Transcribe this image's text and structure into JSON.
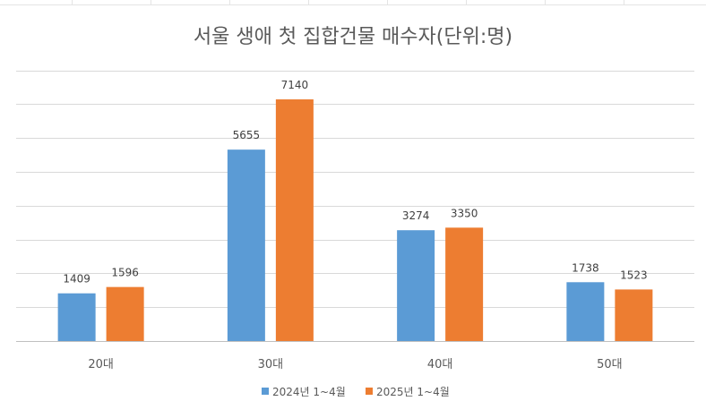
{
  "chart_data": {
    "type": "bar",
    "title": "서울 생애 첫 집합건물 매수자(단위:명)",
    "categories": [
      "20대",
      "30대",
      "40대",
      "50대"
    ],
    "series": [
      {
        "name": "2024년 1~4월",
        "color": "#5b9bd5",
        "values": [
          1409,
          5655,
          3274,
          1738
        ]
      },
      {
        "name": "2025년 1~4월",
        "color": "#ed7d31",
        "values": [
          1596,
          7140,
          3350,
          1523
        ]
      }
    ],
    "ylim": [
      0,
      8000
    ],
    "ytick_step": 1000,
    "grid": true,
    "legend_position": "bottom",
    "data_labels": true
  }
}
